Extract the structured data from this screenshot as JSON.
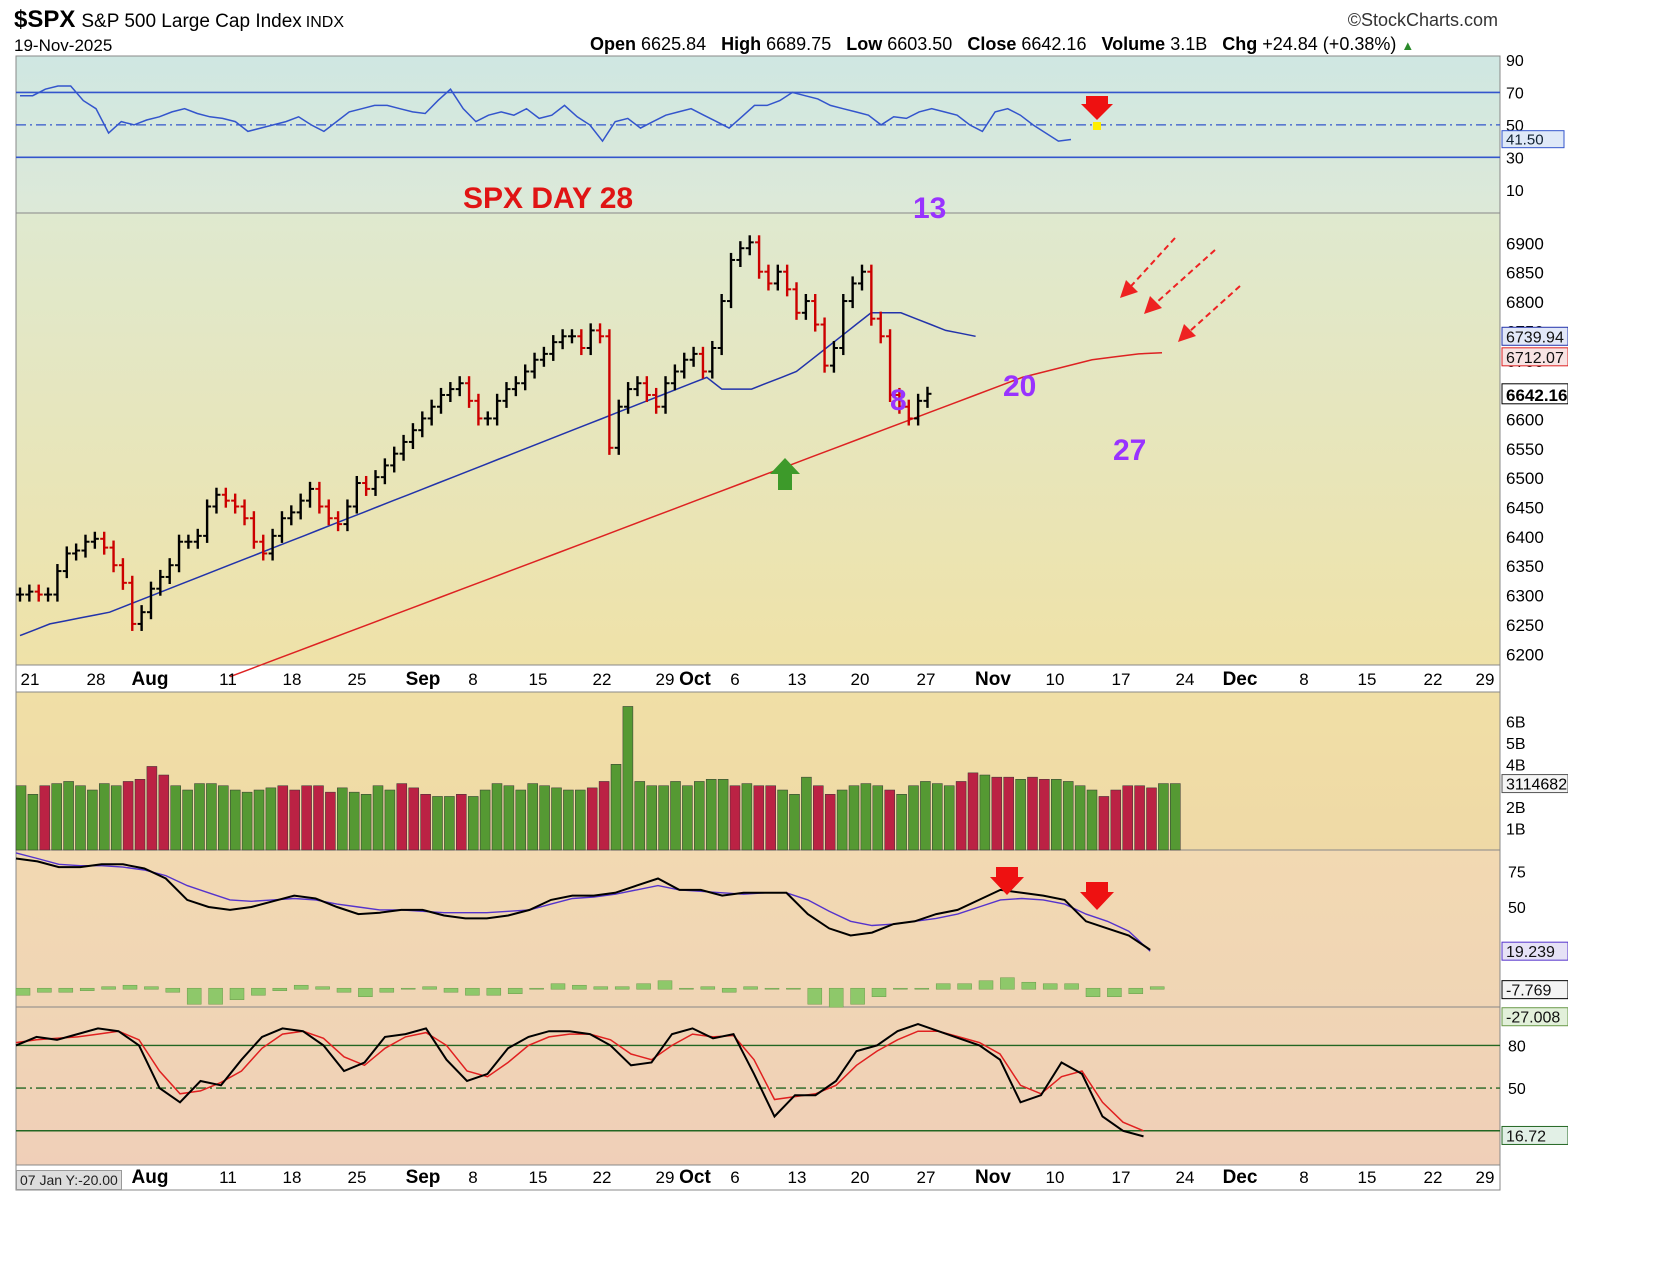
{
  "header": {
    "symbol": "$SPX",
    "name": "S&P 500 Large Cap Index",
    "exchange": "INDX",
    "watermark": "©StockCharts.com",
    "date": "19-Nov-2025",
    "open_label": "Open",
    "open": "6625.84",
    "high_label": "High",
    "high": "6689.75",
    "low_label": "Low",
    "low": "6603.50",
    "close_label": "Close",
    "close": "6642.16",
    "volume_label": "Volume",
    "volume": "3.1B",
    "chg_label": "Chg",
    "chg": "+24.84 (+0.38%)"
  },
  "footer": "07 Jan Y:-20.00",
  "colors": {
    "up": "#000000",
    "down": "#cc0000",
    "ma20": "#2233aa",
    "ma50": "#dd2222",
    "annot": "#9933ff",
    "rsi": "#3355cc",
    "volUp": "#559933",
    "volDown": "#bb2244"
  },
  "chart_data": [
    {
      "type": "line",
      "panel": "RSI",
      "levels": [
        70,
        50,
        30
      ],
      "yticks": [
        "90",
        "70",
        "50",
        "30",
        "10"
      ],
      "last_value": "41.50",
      "values": [
        68,
        68,
        72,
        74,
        74,
        65,
        60,
        45,
        52,
        50,
        53,
        55,
        58,
        60,
        57,
        55,
        54,
        52,
        46,
        48,
        50,
        52,
        55,
        50,
        46,
        52,
        58,
        60,
        62,
        62,
        60,
        58,
        57,
        65,
        72,
        60,
        52,
        56,
        58,
        56,
        60,
        54,
        56,
        62,
        55,
        50,
        40,
        52,
        54,
        48,
        52,
        56,
        58,
        60,
        56,
        52,
        48,
        55,
        62,
        62,
        65,
        70,
        68,
        66,
        62,
        60,
        58,
        56,
        50,
        55,
        54,
        58,
        60,
        58,
        56,
        50,
        46,
        58,
        60,
        56,
        50,
        45,
        40,
        41
      ]
    },
    {
      "type": "bar",
      "panel": "price",
      "title": "SPX DAY 28",
      "yticks": [
        "6900",
        "6850",
        "6800",
        "6750",
        "6700",
        "6650",
        "6600",
        "6550",
        "6500",
        "6450",
        "6400",
        "6350",
        "6300",
        "6250",
        "6200"
      ],
      "ylim": [
        6180,
        6950
      ],
      "xticks": [
        "21",
        "28",
        "Aug",
        "11",
        "18",
        "25",
        "Sep",
        "8",
        "15",
        "22",
        "29",
        "Oct",
        "6",
        "13",
        "20",
        "27",
        "Nov",
        "10",
        "17",
        "24",
        "Dec",
        "8",
        "15",
        "22",
        "29"
      ],
      "annotations": [
        "13",
        "8",
        "20",
        "27"
      ],
      "ma20_last": "6739.94",
      "ma50_last": "6712.07",
      "close_last": "6642.16",
      "closes": [
        6300,
        6305,
        6300,
        6300,
        6340,
        6370,
        6375,
        6390,
        6395,
        6380,
        6350,
        6320,
        6250,
        6270,
        6310,
        6330,
        6350,
        6390,
        6390,
        6400,
        6450,
        6470,
        6460,
        6450,
        6430,
        6390,
        6370,
        6400,
        6430,
        6440,
        6460,
        6480,
        6450,
        6430,
        6420,
        6450,
        6490,
        6480,
        6500,
        6520,
        6540,
        6560,
        6580,
        6600,
        6620,
        6640,
        6650,
        6660,
        6630,
        6600,
        6600,
        6630,
        6650,
        6660,
        6680,
        6700,
        6710,
        6730,
        6740,
        6740,
        6720,
        6750,
        6740,
        6550,
        6620,
        6650,
        6660,
        6640,
        6620,
        6660,
        6680,
        6700,
        6710,
        6680,
        6720,
        6800,
        6870,
        6890,
        6900,
        6850,
        6830,
        6850,
        6820,
        6780,
        6800,
        6760,
        6690,
        6720,
        6800,
        6830,
        6850,
        6770,
        6740,
        6640,
        6620,
        6600,
        6630,
        6642
      ],
      "ma20": [
        6230,
        6240,
        6250,
        6255,
        6260,
        6265,
        6270,
        6280,
        6290,
        6300,
        6310,
        6320,
        6330,
        6340,
        6350,
        6360,
        6370,
        6380,
        6390,
        6400,
        6410,
        6420,
        6430,
        6440,
        6450,
        6460,
        6470,
        6480,
        6490,
        6500,
        6510,
        6520,
        6530,
        6540,
        6550,
        6560,
        6570,
        6580,
        6590,
        6600,
        6610,
        6620,
        6630,
        6640,
        6650,
        6660,
        6670,
        6650,
        6650,
        6650,
        6660,
        6670,
        6680,
        6700,
        6720,
        6740,
        6760,
        6780,
        6780,
        6780,
        6770,
        6760,
        6750,
        6745,
        6740
      ],
      "ma50": [
        6160,
        6175,
        6190,
        6205,
        6220,
        6235,
        6250,
        6265,
        6280,
        6295,
        6310,
        6325,
        6340,
        6355,
        6370,
        6385,
        6400,
        6415,
        6430,
        6445,
        6460,
        6475,
        6490,
        6505,
        6520,
        6535,
        6550,
        6565,
        6580,
        6595,
        6610,
        6625,
        6640,
        6655,
        6670,
        6680,
        6690,
        6700,
        6705,
        6710,
        6712
      ]
    },
    {
      "type": "bar",
      "panel": "volume",
      "yticks": [
        "6B",
        "5B",
        "4B",
        "2B",
        "1B"
      ],
      "last_value": "3114682",
      "values": [
        3.0,
        2.6,
        3.0,
        3.1,
        3.2,
        3.0,
        2.8,
        3.1,
        3.0,
        3.2,
        3.3,
        3.9,
        3.5,
        3.0,
        2.8,
        3.1,
        3.1,
        3.0,
        2.8,
        2.7,
        2.8,
        2.9,
        3.0,
        2.8,
        3.0,
        3.0,
        2.7,
        2.9,
        2.7,
        2.6,
        3.0,
        2.8,
        3.1,
        2.9,
        2.6,
        2.5,
        2.5,
        2.6,
        2.5,
        2.8,
        3.1,
        3.0,
        2.8,
        3.1,
        3.0,
        2.9,
        2.8,
        2.8,
        2.9,
        3.2,
        4.0,
        6.7,
        3.2,
        3.0,
        3.0,
        3.2,
        3.0,
        3.2,
        3.3,
        3.3,
        3.0,
        3.1,
        3.0,
        3.0,
        2.8,
        2.6,
        3.4,
        3.0,
        2.6,
        2.8,
        3.0,
        3.1,
        3.0,
        2.8,
        2.6,
        3.0,
        3.2,
        3.1,
        3.0,
        3.2,
        3.6,
        3.5,
        3.4,
        3.4,
        3.3,
        3.4,
        3.3,
        3.3,
        3.2,
        3.0,
        2.8,
        2.5,
        2.8,
        3.0,
        3.0,
        2.9,
        3.1,
        3.1
      ]
    },
    {
      "type": "line",
      "panel": "MACD",
      "yticks": [
        "75",
        "50"
      ],
      "signal_last": "19.239",
      "macd_last": "-7.769",
      "hist_last": "-27.008"
    },
    {
      "type": "line",
      "panel": "Stochastic",
      "levels": [
        80,
        50,
        20
      ],
      "yticks": [
        "80",
        "50"
      ],
      "last_value": "16.72"
    }
  ]
}
